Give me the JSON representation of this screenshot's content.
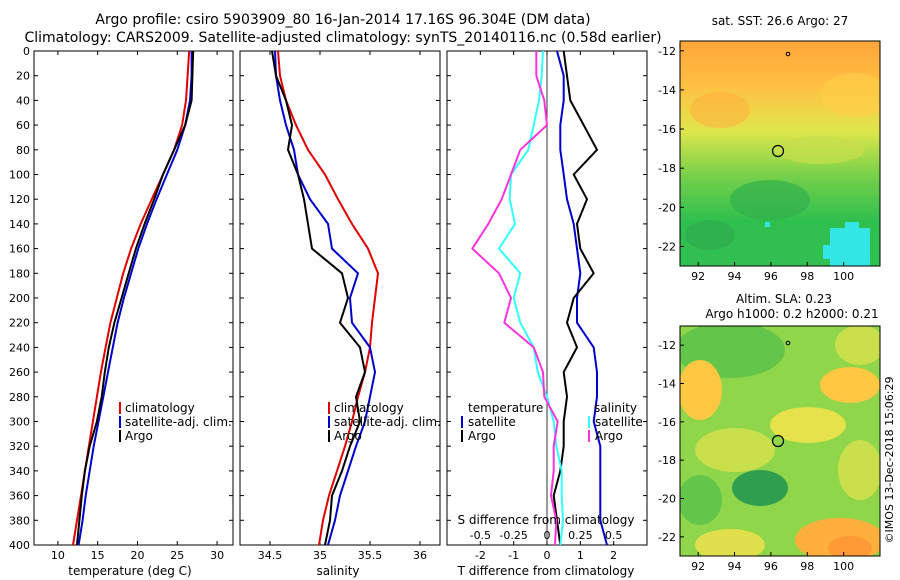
{
  "header": {
    "title_line1": "Argo profile: csiro 5903909_80 16-Jan-2014 17.16S 96.304E (DM data)",
    "title_line2": "Climatology: CARS2009. Satellite-adjusted climatology: synTS_20140116.nc (0.58d earlier)"
  },
  "colors": {
    "climatology": "#e00000",
    "satellite": "#0000cc",
    "argo": "#000000",
    "s_diff_argo": "#ff33dd",
    "s_diff_sat": "#33ffff"
  },
  "depth_axis": {
    "ticks": [
      "0",
      "20",
      "40",
      "60",
      "80",
      "100",
      "120",
      "140",
      "160",
      "180",
      "200",
      "220",
      "240",
      "260",
      "280",
      "300",
      "320",
      "340",
      "360",
      "380",
      "400"
    ]
  },
  "legends": {
    "temperature": [
      "climatology",
      "satellite-adj. clim.",
      "Argo"
    ],
    "salinity": [
      "climatology",
      "satellite-adj. clim.",
      "Argo"
    ],
    "difference_left_header": "temperature",
    "difference_right_header": "salinity",
    "difference_items": [
      "satellite",
      "Argo"
    ]
  },
  "chart_data": [
    {
      "type": "line",
      "title": "",
      "xlabel": "temperature (deg C)",
      "ylabel": "depth",
      "xlim": [
        7,
        32
      ],
      "ylim": [
        400,
        0
      ],
      "xticks": [
        "10",
        "15",
        "20",
        "25",
        "30"
      ],
      "series": [
        {
          "name": "climatology",
          "x": [
            26.5,
            26.3,
            26.1,
            25.6,
            24.6,
            23.2,
            21.8,
            20.4,
            19.2,
            18.2,
            17.4,
            16.6,
            16.0,
            15.4,
            14.9,
            14.4,
            13.9,
            13.4,
            12.9,
            12.4,
            11.9
          ],
          "y": [
            0,
            20,
            40,
            60,
            80,
            100,
            120,
            140,
            160,
            180,
            200,
            220,
            240,
            260,
            280,
            300,
            320,
            340,
            360,
            380,
            400
          ]
        },
        {
          "name": "satellite-adj. clim.",
          "x": [
            26.8,
            26.8,
            26.6,
            26.0,
            25.0,
            23.7,
            22.4,
            21.2,
            20.1,
            19.2,
            18.3,
            17.5,
            16.9,
            16.3,
            15.7,
            15.1,
            14.5,
            14.0,
            13.5,
            13.1,
            12.6
          ],
          "y": [
            0,
            20,
            40,
            60,
            80,
            100,
            120,
            140,
            160,
            180,
            200,
            220,
            240,
            260,
            280,
            300,
            320,
            340,
            360,
            380,
            400
          ]
        },
        {
          "name": "Argo",
          "x": [
            27.0,
            26.9,
            26.8,
            26.0,
            24.6,
            23.2,
            22.1,
            20.9,
            19.8,
            18.9,
            18.0,
            17.1,
            16.4,
            15.9,
            15.5,
            14.9,
            14.0,
            13.4,
            13.0,
            12.7,
            12.4
          ],
          "y": [
            0,
            20,
            40,
            60,
            80,
            100,
            120,
            140,
            160,
            180,
            200,
            220,
            240,
            260,
            280,
            300,
            320,
            340,
            360,
            380,
            400
          ]
        }
      ]
    },
    {
      "type": "line",
      "title": "",
      "xlabel": "salinity",
      "ylabel": "depth",
      "xlim": [
        34.2,
        36.2
      ],
      "ylim": [
        400,
        0
      ],
      "xticks": [
        "34.5",
        "35",
        "35.5",
        "36"
      ],
      "series": [
        {
          "name": "climatology",
          "x": [
            34.58,
            34.6,
            34.66,
            34.76,
            34.88,
            35.05,
            35.18,
            35.32,
            35.48,
            35.58,
            35.55,
            35.52,
            35.5,
            35.45,
            35.38,
            35.32,
            35.25,
            35.17,
            35.09,
            35.03,
            34.99
          ],
          "y": [
            0,
            20,
            40,
            60,
            80,
            100,
            120,
            140,
            160,
            180,
            200,
            220,
            240,
            260,
            280,
            300,
            320,
            340,
            360,
            380,
            400
          ]
        },
        {
          "name": "satellite-adj. clim.",
          "x": [
            34.55,
            34.56,
            34.6,
            34.66,
            34.74,
            34.78,
            34.9,
            35.08,
            35.12,
            35.38,
            35.3,
            35.32,
            35.5,
            35.55,
            35.5,
            35.45,
            35.36,
            35.28,
            35.2,
            35.15,
            35.08
          ],
          "y": [
            0,
            20,
            40,
            60,
            80,
            100,
            120,
            140,
            160,
            180,
            200,
            220,
            240,
            260,
            280,
            300,
            320,
            340,
            360,
            380,
            400
          ]
        },
        {
          "name": "Argo",
          "x": [
            34.52,
            34.56,
            34.66,
            34.72,
            34.68,
            34.78,
            34.84,
            34.88,
            34.92,
            35.22,
            35.28,
            35.2,
            35.4,
            35.45,
            35.36,
            35.4,
            35.3,
            35.22,
            35.12,
            35.1,
            35.05
          ],
          "y": [
            0,
            20,
            40,
            60,
            80,
            100,
            120,
            140,
            160,
            180,
            200,
            220,
            240,
            260,
            280,
            300,
            320,
            340,
            360,
            380,
            400
          ]
        }
      ]
    },
    {
      "type": "line",
      "title": "",
      "xlabel": "T difference from climatology",
      "ylabel": "depth",
      "xlim": [
        -3,
        3
      ],
      "ylim": [
        400,
        0
      ],
      "xticks": [
        "-2",
        "-1",
        "0",
        "1",
        "2"
      ],
      "series": [
        {
          "name": "satellite T diff",
          "x": [
            0.3,
            0.5,
            0.5,
            0.4,
            0.4,
            0.5,
            0.6,
            0.8,
            0.9,
            1.0,
            0.9,
            0.9,
            1.4,
            1.5,
            1.5,
            1.4,
            1.6,
            1.6,
            1.6,
            1.6,
            1.8
          ],
          "y": [
            0,
            20,
            40,
            60,
            80,
            100,
            120,
            140,
            160,
            180,
            200,
            220,
            240,
            260,
            280,
            300,
            320,
            340,
            360,
            380,
            400
          ]
        },
        {
          "name": "Argo T diff",
          "x": [
            0.5,
            0.6,
            0.7,
            1.1,
            1.5,
            0.8,
            1.2,
            0.9,
            1.0,
            1.4,
            0.8,
            0.6,
            0.9,
            0.5,
            0.6,
            0.5,
            0.5,
            0.4,
            0.2,
            0.3,
            0.4
          ],
          "y": [
            0,
            20,
            40,
            60,
            80,
            100,
            120,
            140,
            160,
            180,
            200,
            220,
            240,
            260,
            280,
            300,
            320,
            340,
            360,
            380,
            400
          ]
        }
      ]
    },
    {
      "type": "line",
      "title": "",
      "xlabel": "S difference from climatology",
      "ylabel": "depth",
      "xlim": [
        -0.75,
        0.75
      ],
      "ylim": [
        400,
        0
      ],
      "xticks": [
        "-0.5",
        "-0.25",
        "0",
        "0.25",
        "0.5"
      ],
      "series": [
        {
          "name": "satellite S diff",
          "x": [
            -0.03,
            -0.04,
            -0.06,
            -0.1,
            -0.14,
            -0.27,
            -0.28,
            -0.24,
            -0.36,
            -0.2,
            -0.25,
            -0.2,
            -0.1,
            -0.07,
            0.0,
            0.05,
            0.07,
            0.11,
            0.11,
            0.12,
            0.1
          ],
          "y": [
            0,
            20,
            40,
            60,
            80,
            100,
            120,
            140,
            160,
            180,
            200,
            220,
            240,
            260,
            280,
            300,
            320,
            340,
            360,
            380,
            400
          ]
        },
        {
          "name": "Argo S diff",
          "x": [
            -0.08,
            -0.08,
            -0.02,
            0.0,
            -0.2,
            -0.27,
            -0.34,
            -0.44,
            -0.56,
            -0.36,
            -0.27,
            -0.32,
            -0.1,
            -0.03,
            -0.02,
            0.08,
            0.05,
            0.05,
            0.03,
            0.07,
            0.06
          ],
          "y": [
            0,
            20,
            40,
            60,
            80,
            100,
            120,
            140,
            160,
            180,
            200,
            220,
            240,
            260,
            280,
            300,
            320,
            340,
            360,
            380,
            400
          ]
        }
      ]
    },
    {
      "type": "heatmap",
      "title": "sat. SST: 26.6 Argo: 27",
      "xlim": [
        91,
        102
      ],
      "ylim": [
        -23,
        -11.5
      ],
      "xticks": [
        "92",
        "94",
        "96",
        "98",
        "100"
      ],
      "yticks": [
        "-12",
        "-14",
        "-16",
        "-18",
        "-20",
        "-22"
      ],
      "profile_location": {
        "lon": 96.3,
        "lat": -17.2
      },
      "secondary_location": {
        "lon": 97.0,
        "lat": -12.1
      }
    },
    {
      "type": "heatmap",
      "title": "Altim. SLA: 0.23",
      "subtitle": "Argo h1000: 0.2 h2000: 0.21",
      "xlim": [
        91,
        102
      ],
      "ylim": [
        -23,
        -11
      ],
      "xticks": [
        "92",
        "94",
        "96",
        "98",
        "100"
      ],
      "yticks": [
        "-12",
        "-14",
        "-16",
        "-18",
        "-20",
        "-22"
      ],
      "profile_location": {
        "lon": 96.3,
        "lat": -17.2
      },
      "secondary_location": {
        "lon": 97.0,
        "lat": -12.1
      }
    }
  ],
  "footer": {
    "credit": "©IMOS 13-Dec-2018 15:06:29"
  }
}
